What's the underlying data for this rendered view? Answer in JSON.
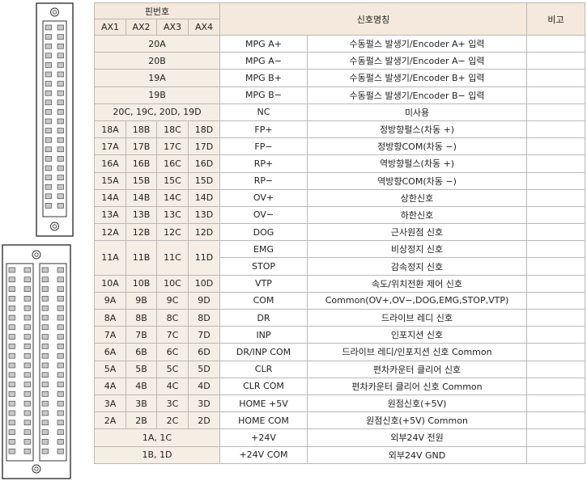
{
  "header": {
    "pin_no": "핀번호",
    "ax": [
      "AX1",
      "AX2",
      "AX3",
      "AX4"
    ],
    "signal_name": "신호명칭",
    "remarks": "비고"
  },
  "rows": [
    {
      "type": "span",
      "pin": "20A",
      "code": "MPG A+",
      "desc": "수동펄스 발생기/Encoder A+ 입력"
    },
    {
      "type": "span",
      "pin": "20B",
      "code": "MPG A−",
      "desc": "수동펄스 발생기/Encoder A− 입력"
    },
    {
      "type": "span",
      "pin": "19A",
      "code": "MPG B+",
      "desc": "수동펄스 발생기/Encoder B+ 입력"
    },
    {
      "type": "span",
      "pin": "19B",
      "code": "MPG B−",
      "desc": "수동펄스 발생기/Encoder B− 입력"
    },
    {
      "type": "span",
      "pin": "20C, 19C, 20D, 19D",
      "code": "NC",
      "desc": "미사용"
    },
    {
      "type": "quad",
      "pins": [
        "18A",
        "18B",
        "18C",
        "18D"
      ],
      "code": "FP+",
      "desc": "정방향펄스(차동 +)"
    },
    {
      "type": "quad",
      "pins": [
        "17A",
        "17B",
        "17C",
        "17D"
      ],
      "code": "FP−",
      "desc": "정방향COM(차동 −)"
    },
    {
      "type": "quad",
      "pins": [
        "16A",
        "16B",
        "16C",
        "16D"
      ],
      "code": "RP+",
      "desc": "역방향펄스(차동 +)"
    },
    {
      "type": "quad",
      "pins": [
        "15A",
        "15B",
        "15C",
        "15D"
      ],
      "code": "RP−",
      "desc": "역방향COM(차동 −)"
    },
    {
      "type": "quad",
      "pins": [
        "14A",
        "14B",
        "14C",
        "14D"
      ],
      "code": "OV+",
      "desc": "상한신호"
    },
    {
      "type": "quad",
      "pins": [
        "13A",
        "13B",
        "13C",
        "13D"
      ],
      "code": "OV−",
      "desc": "하한신호"
    },
    {
      "type": "quad",
      "pins": [
        "12A",
        "12B",
        "12C",
        "12D"
      ],
      "code": "DOG",
      "desc": "근사원점 신호"
    },
    {
      "type": "quad2",
      "pins": [
        "11A",
        "11B",
        "11C",
        "11D"
      ],
      "code": "EMG",
      "desc": "비상정지 신호",
      "code2": "STOP",
      "desc2": "감속정지 신호"
    },
    {
      "type": "quad",
      "pins": [
        "10A",
        "10B",
        "10C",
        "10D"
      ],
      "code": "VTP",
      "desc": "속도/위치전환 제어 신호"
    },
    {
      "type": "quad",
      "pins": [
        "9A",
        "9B",
        "9C",
        "9D"
      ],
      "code": "COM",
      "desc": "Common(OV+,OV−,DOG,EMG,STOP,VTP)"
    },
    {
      "type": "quad",
      "pins": [
        "8A",
        "8B",
        "8C",
        "8D"
      ],
      "code": "DR",
      "desc": "드라이브 레디 신호"
    },
    {
      "type": "quad",
      "pins": [
        "7A",
        "7B",
        "7C",
        "7D"
      ],
      "code": "INP",
      "desc": "인포지션 신호"
    },
    {
      "type": "quad",
      "pins": [
        "6A",
        "6B",
        "6C",
        "6D"
      ],
      "code": "DR/INP COM",
      "desc": "드라이브 레디/인포지션 신호 Common"
    },
    {
      "type": "quad",
      "pins": [
        "5A",
        "5B",
        "5C",
        "5D"
      ],
      "code": "CLR",
      "desc": "편차카운터 클리어 신호"
    },
    {
      "type": "quad",
      "pins": [
        "4A",
        "4B",
        "4C",
        "4D"
      ],
      "code": "CLR COM",
      "desc": "편차카운터 클리어 신호 Common"
    },
    {
      "type": "quad",
      "pins": [
        "3A",
        "3B",
        "3C",
        "3D"
      ],
      "code": "HOME +5V",
      "desc": "원점신호(+5V)"
    },
    {
      "type": "quad",
      "pins": [
        "2A",
        "2B",
        "2C",
        "2D"
      ],
      "code": "HOME COM",
      "desc": "원점신호(+5V) Common"
    },
    {
      "type": "span",
      "pin": "1A, 1C",
      "code": "+24V",
      "desc": "외부24V 전원"
    },
    {
      "type": "span",
      "pin": "1B, 1D",
      "code": "+24V COM",
      "desc": "외부24V GND"
    }
  ],
  "colors": {
    "header_bg": "#f4e9dc",
    "pin_cell_bg": "#f6eee4",
    "border": "#b9b9b9",
    "connector_stroke": "#333333",
    "pin_fill": "#c8c8c8"
  }
}
